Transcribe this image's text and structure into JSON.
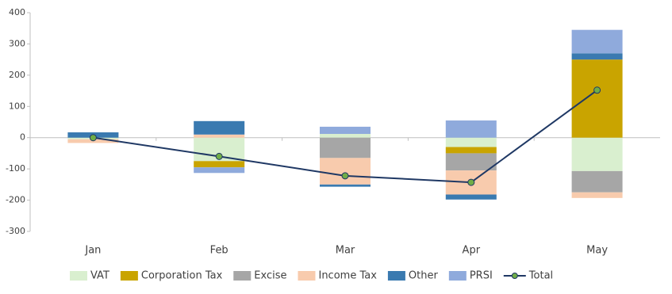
{
  "chart_data": {
    "type": "bar",
    "stacked": true,
    "categories": [
      "Jan",
      "Feb",
      "Mar",
      "Apr",
      "May"
    ],
    "series": [
      {
        "name": "VAT",
        "color": "#d9efcf",
        "values": [
          -5,
          -75,
          12,
          -30,
          -107
        ]
      },
      {
        "name": "Corporation Tax",
        "color": "#c9a400",
        "values": [
          0,
          -20,
          0,
          -20,
          250
        ]
      },
      {
        "name": "Excise",
        "color": "#a6a6a6",
        "values": [
          0,
          0,
          -65,
          -55,
          -68
        ]
      },
      {
        "name": "Income Tax",
        "color": "#f8cbad",
        "values": [
          -12,
          10,
          -85,
          -77,
          -18
        ]
      },
      {
        "name": "Other",
        "color": "#3a7ab0",
        "values": [
          17,
          43,
          -7,
          -16,
          20
        ]
      },
      {
        "name": "PRSI",
        "color": "#8faadc",
        "values": [
          0,
          -18,
          23,
          55,
          75
        ]
      },
      {
        "name": "Total",
        "type": "line",
        "color": "#1f3864",
        "marker_color": "#70ad47",
        "values": [
          0,
          -60,
          -122,
          -143,
          152
        ]
      }
    ],
    "ylim": [
      -300,
      400
    ],
    "yticks": [
      -300,
      -200,
      -100,
      0,
      100,
      200,
      300,
      400
    ],
    "grid": false,
    "legend": "bottom"
  }
}
